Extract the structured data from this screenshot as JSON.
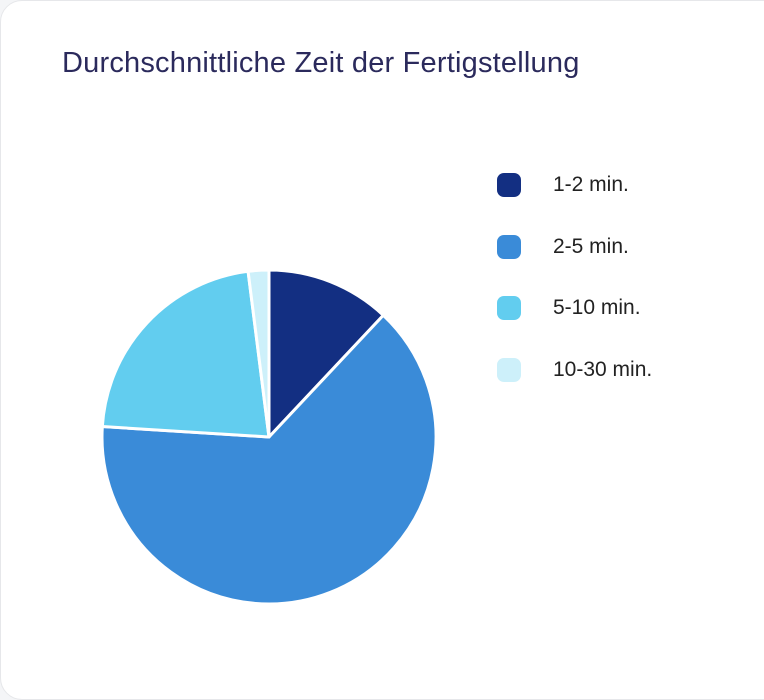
{
  "card": {
    "title": "Durchschnittliche Zeit der Fertigstellung"
  },
  "chart_data": {
    "type": "pie",
    "title": "Durchschnittliche Zeit der Fertigstellung",
    "legend_position": "right",
    "categories": [
      "1-2 min.",
      "2-5 min.",
      "5-10 min.",
      "10-30 min."
    ],
    "values": [
      12,
      64,
      22,
      2
    ],
    "colors": [
      "#132f82",
      "#3a8bd8",
      "#62cdef",
      "#cdf0fa"
    ]
  }
}
